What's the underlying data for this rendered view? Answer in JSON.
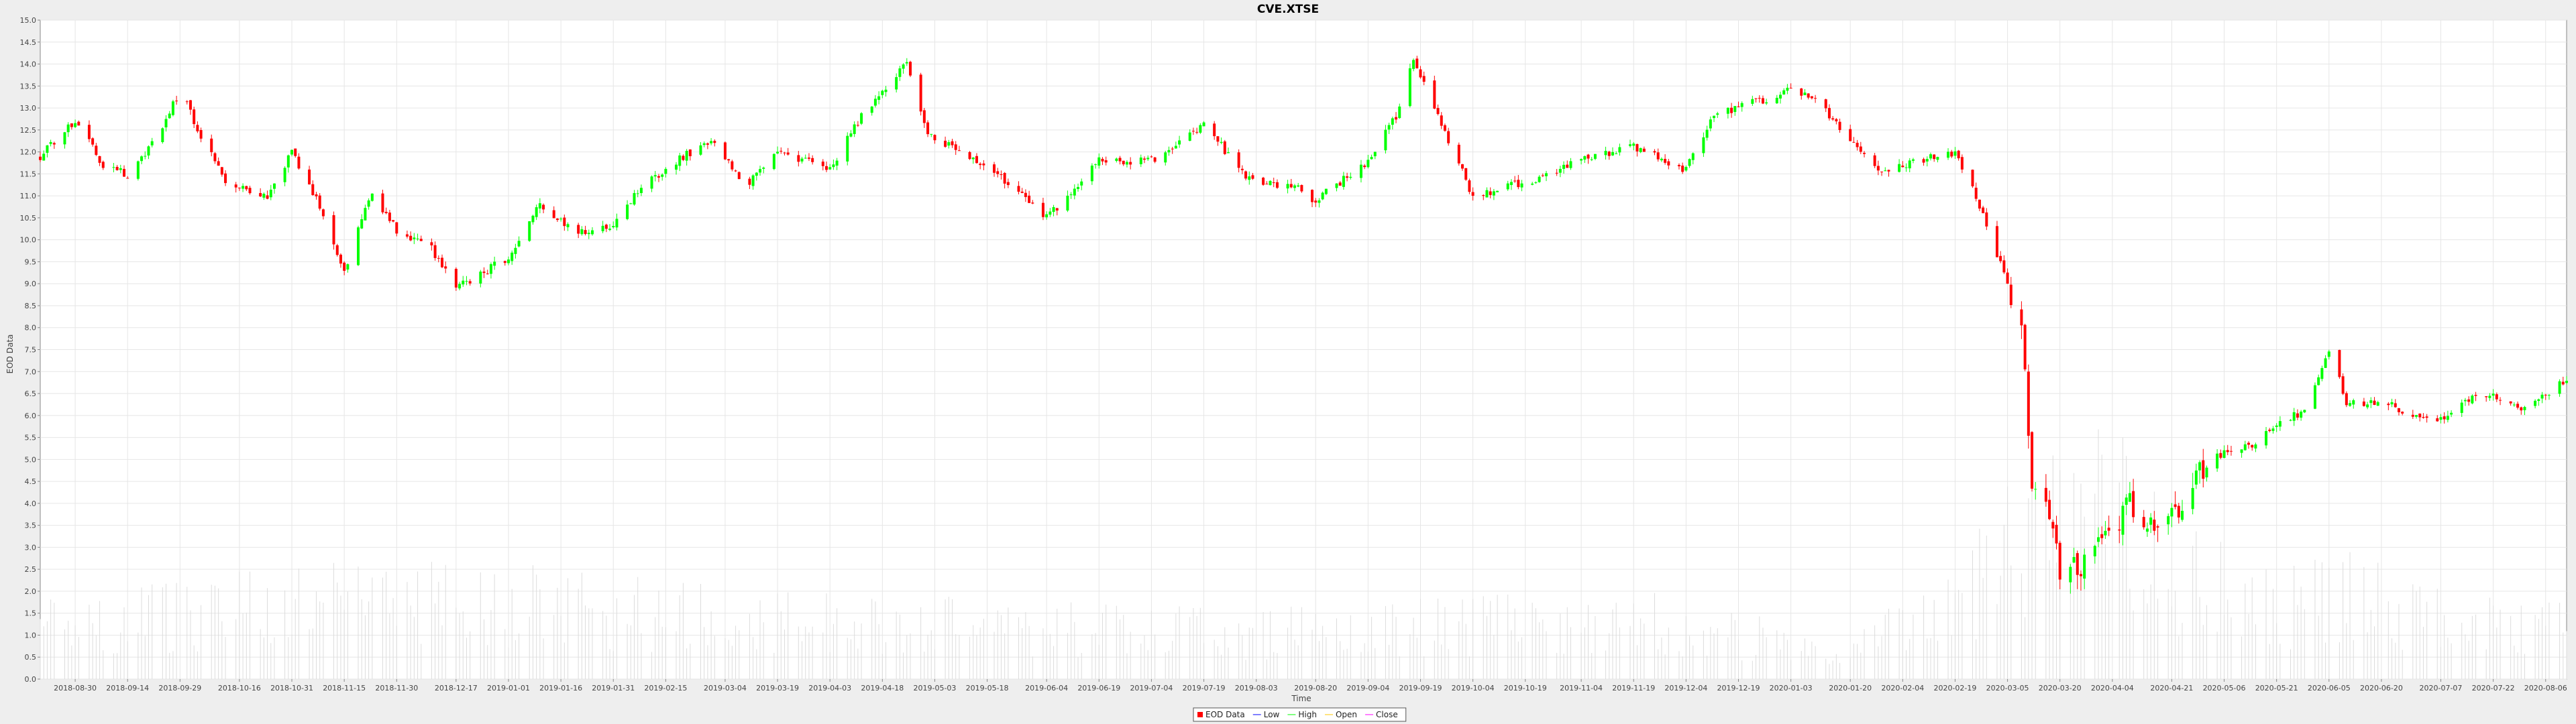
{
  "chart_data": {
    "type": "candlestick",
    "title": "CVE.XTSE",
    "xlabel": "Time",
    "ylabel": "EOD Data",
    "ylim": [
      0.0,
      15.0
    ],
    "y_ticks": [
      "0.0",
      "0.5",
      "1.0",
      "1.5",
      "2.0",
      "2.5",
      "3.0",
      "3.5",
      "4.0",
      "4.5",
      "5.0",
      "5.5",
      "6.0",
      "6.5",
      "7.0",
      "7.5",
      "8.0",
      "8.5",
      "9.0",
      "9.5",
      "10.0",
      "10.5",
      "11.0",
      "11.5",
      "12.0",
      "12.5",
      "13.0",
      "13.5",
      "14.0",
      "14.5",
      "15.0"
    ],
    "x_ticks": [
      "2018-08-30",
      "2018-09-14",
      "2018-09-29",
      "2018-10-16",
      "2018-10-31",
      "2018-11-15",
      "2018-11-30",
      "2018-12-17",
      "2019-01-01",
      "2019-01-16",
      "2019-01-31",
      "2019-02-15",
      "2019-03-04",
      "2019-03-19",
      "2019-04-03",
      "2019-04-18",
      "2019-05-03",
      "2019-05-18",
      "2019-06-04",
      "2019-06-19",
      "2019-07-04",
      "2019-07-19",
      "2019-08-03",
      "2019-08-20",
      "2019-09-04",
      "2019-09-19",
      "2019-10-04",
      "2019-10-19",
      "2019-11-04",
      "2019-11-19",
      "2019-12-04",
      "2019-12-19",
      "2020-01-03",
      "2020-01-20",
      "2020-02-04",
      "2020-02-19",
      "2020-03-05",
      "2020-03-20",
      "2020-04-04",
      "2020-04-21",
      "2020-05-06",
      "2020-05-21",
      "2020-06-05",
      "2020-06-20",
      "2020-07-07",
      "2020-07-22",
      "2020-08-06"
    ],
    "price_path": [
      [
        "2018-08-20",
        11.9
      ],
      [
        "2018-08-30",
        12.7
      ],
      [
        "2018-09-07",
        11.7
      ],
      [
        "2018-09-14",
        11.5
      ],
      [
        "2018-09-22",
        12.3
      ],
      [
        "2018-09-29",
        13.4
      ],
      [
        "2018-10-06",
        12.2
      ],
      [
        "2018-10-12",
        11.3
      ],
      [
        "2018-10-24",
        11.0
      ],
      [
        "2018-10-31",
        12.0
      ],
      [
        "2018-11-08",
        10.8
      ],
      [
        "2018-11-15",
        9.3
      ],
      [
        "2018-11-23",
        11.1
      ],
      [
        "2018-11-30",
        10.2
      ],
      [
        "2018-12-10",
        9.8
      ],
      [
        "2018-12-17",
        8.9
      ],
      [
        "2019-01-01",
        9.6
      ],
      [
        "2019-01-10",
        10.8
      ],
      [
        "2019-01-20",
        10.2
      ],
      [
        "2019-01-31",
        10.3
      ],
      [
        "2019-02-08",
        11.2
      ],
      [
        "2019-02-20",
        11.9
      ],
      [
        "2019-03-01",
        12.2
      ],
      [
        "2019-03-10",
        11.2
      ],
      [
        "2019-03-19",
        12.0
      ],
      [
        "2019-04-03",
        11.6
      ],
      [
        "2019-04-11",
        12.7
      ],
      [
        "2019-04-18",
        13.3
      ],
      [
        "2019-04-25",
        14.1
      ],
      [
        "2019-05-01",
        12.4
      ],
      [
        "2019-05-10",
        12.0
      ],
      [
        "2019-05-24",
        11.3
      ],
      [
        "2019-06-04",
        10.5
      ],
      [
        "2019-06-19",
        11.8
      ],
      [
        "2019-07-04",
        11.8
      ],
      [
        "2019-07-19",
        12.6
      ],
      [
        "2019-08-03",
        11.2
      ],
      [
        "2019-08-12",
        11.3
      ],
      [
        "2019-08-20",
        10.9
      ],
      [
        "2019-09-04",
        11.8
      ],
      [
        "2019-09-12",
        12.8
      ],
      [
        "2019-09-17",
        14.1
      ],
      [
        "2019-09-23",
        13.0
      ],
      [
        "2019-10-04",
        11.0
      ],
      [
        "2019-10-19",
        11.3
      ],
      [
        "2019-11-04",
        11.8
      ],
      [
        "2019-11-19",
        12.1
      ],
      [
        "2019-12-04",
        11.6
      ],
      [
        "2019-12-12",
        12.8
      ],
      [
        "2019-12-19",
        13.0
      ],
      [
        "2020-01-03",
        13.4
      ],
      [
        "2020-01-10",
        13.2
      ],
      [
        "2020-01-20",
        12.2
      ],
      [
        "2020-01-29",
        11.6
      ],
      [
        "2020-02-04",
        11.7
      ],
      [
        "2020-02-12",
        11.9
      ],
      [
        "2020-02-19",
        12.0
      ],
      [
        "2020-02-25",
        11.0
      ],
      [
        "2020-03-05",
        9.0
      ],
      [
        "2020-03-09",
        7.9
      ],
      [
        "2020-03-12",
        4.6
      ],
      [
        "2020-03-17",
        3.6
      ],
      [
        "2020-03-20",
        2.5
      ],
      [
        "2020-03-26",
        2.6
      ],
      [
        "2020-04-02",
        3.2
      ],
      [
        "2020-04-09",
        4.0
      ],
      [
        "2020-04-14",
        3.6
      ],
      [
        "2020-04-21",
        3.7
      ],
      [
        "2020-04-28",
        4.6
      ],
      [
        "2020-05-06",
        5.2
      ],
      [
        "2020-05-14",
        5.3
      ],
      [
        "2020-05-21",
        5.8
      ],
      [
        "2020-05-29",
        6.1
      ],
      [
        "2020-06-05",
        7.5
      ],
      [
        "2020-06-10",
        6.3
      ],
      [
        "2020-06-20",
        6.3
      ],
      [
        "2020-06-30",
        6.0
      ],
      [
        "2020-07-07",
        5.9
      ],
      [
        "2020-07-15",
        6.4
      ],
      [
        "2020-07-22",
        6.5
      ],
      [
        "2020-07-30",
        6.2
      ],
      [
        "2020-08-06",
        6.5
      ],
      [
        "2020-08-12",
        6.8
      ]
    ],
    "volume_envelope": [
      [
        "2018-08-20",
        1.8
      ],
      [
        "2018-11-01",
        2.8
      ],
      [
        "2018-12-01",
        3.0
      ],
      [
        "2019-03-01",
        2.2
      ],
      [
        "2019-06-01",
        1.8
      ],
      [
        "2019-08-01",
        1.6
      ],
      [
        "2019-10-01",
        2.0
      ],
      [
        "2019-12-01",
        2.0
      ],
      [
        "2020-01-15",
        1.0
      ],
      [
        "2020-02-20",
        2.4
      ],
      [
        "2020-03-05",
        5.0
      ],
      [
        "2020-03-20",
        6.5
      ],
      [
        "2020-04-04",
        6.0
      ],
      [
        "2020-04-21",
        3.6
      ],
      [
        "2020-05-21",
        2.6
      ],
      [
        "2020-06-10",
        3.0
      ],
      [
        "2020-07-07",
        2.2
      ],
      [
        "2020-08-12",
        1.8
      ]
    ],
    "colors": {
      "up": "#00ff00",
      "down": "#ff0000",
      "volume": "#dcdcdc",
      "plot_background": "#ffffff",
      "gridline": "#e6e6e6",
      "outline": "#888888"
    },
    "legend": {
      "position": "bottom-center",
      "entries": [
        {
          "label": "EOD Data",
          "color": "#ff0000",
          "marker": "square"
        },
        {
          "label": "Low",
          "color": "#0000ff",
          "marker": "line"
        },
        {
          "label": "High",
          "color": "#00ff00",
          "marker": "line"
        },
        {
          "label": "Open",
          "color": "#ffc800",
          "marker": "line"
        },
        {
          "label": "Close",
          "color": "#ff00ff",
          "marker": "line"
        }
      ]
    }
  }
}
